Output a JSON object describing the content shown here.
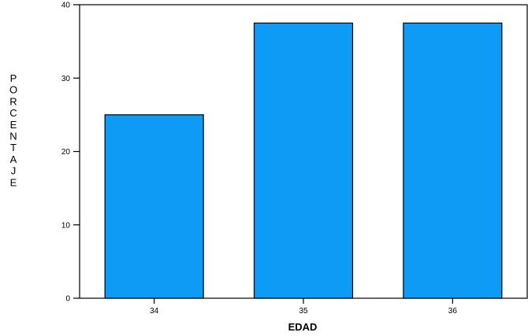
{
  "chart_data": {
    "type": "bar",
    "categories": [
      "34",
      "35",
      "36"
    ],
    "values": [
      25,
      37.5,
      37.5
    ],
    "xlabel": "EDAD",
    "ylabel": "PORCENTAJE",
    "ylim": [
      0,
      40
    ],
    "yticks": [
      "0",
      "10",
      "20",
      "30",
      "40"
    ],
    "grid": false,
    "legend": "none",
    "bar_color": "#0d9bf5",
    "edge_color": "#000000"
  }
}
